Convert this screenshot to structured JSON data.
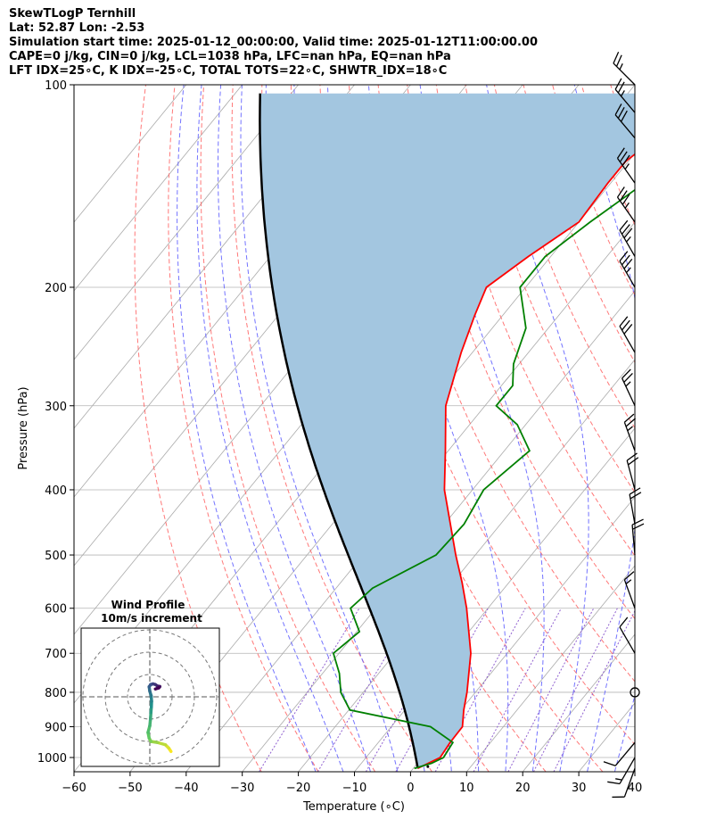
{
  "header": {
    "line1": "SkewTLogP Ternhill",
    "line2": "Lat: 52.87   Lon: -2.53",
    "line3": "Simulation start time: 2025-01-12_00:00:00, Valid time: 2025-01-12T11:00:00.00",
    "line4": "CAPE=0 j/kg, CIN=0 j/kg, LCL=1038 hPa, LFC=nan hPa, EQ=nan hPa",
    "line5": "LFT IDX=25∘C, K IDX=-25∘C, TOTAL TOTS=22∘C, SHWTR_IDX=18∘C"
  },
  "colors": {
    "temperature": "#ff0000",
    "dewpoint": "#008000",
    "parcel": "#000000",
    "cape_fill": "#a3c6e0",
    "dry_adiabat": "#ff6060",
    "moist_adiabat": "#5a5aff",
    "isotherm": "#aaaaaa",
    "isobar": "#b5b5b5",
    "mixing_ratio": "#9060d0"
  },
  "chart_data": {
    "type": "line",
    "subtype": "skew-t log-p",
    "xlabel": "Temperature (∘C)",
    "ylabel": "Pressure (hPa)",
    "xlim": [
      -60,
      40
    ],
    "ylim": [
      1050,
      100
    ],
    "y_scale": "log",
    "x_ticks": [
      -60,
      -50,
      -40,
      -30,
      -20,
      -10,
      0,
      10,
      20,
      30,
      40
    ],
    "y_ticks": [
      1000,
      900,
      800,
      700,
      600,
      500,
      400,
      300,
      200,
      100
    ],
    "grid": true,
    "temperature_profile": {
      "name": "Temperature",
      "points": [
        [
          1038,
          0.8
        ],
        [
          1000,
          3.2
        ],
        [
          950,
          2.8
        ],
        [
          900,
          2.7
        ],
        [
          850,
          0.5
        ],
        [
          800,
          -1.5
        ],
        [
          700,
          -6.5
        ],
        [
          600,
          -13.8
        ],
        [
          550,
          -18.3
        ],
        [
          500,
          -23.5
        ],
        [
          400,
          -35.0
        ],
        [
          350,
          -40.5
        ],
        [
          300,
          -47.0
        ],
        [
          250,
          -52.0
        ],
        [
          220,
          -55.0
        ],
        [
          200,
          -57.0
        ],
        [
          180,
          -54.0
        ],
        [
          160,
          -50.0
        ],
        [
          140,
          -50.5
        ],
        [
          130,
          -50.5
        ],
        [
          120,
          -48.5
        ],
        [
          110,
          -45.0
        ],
        [
          100,
          -43.0
        ]
      ]
    },
    "dewpoint_profile": {
      "name": "Dewpoint",
      "points": [
        [
          1038,
          0.2
        ],
        [
          1020,
          2.5
        ],
        [
          1000,
          3.8
        ],
        [
          950,
          3.3
        ],
        [
          900,
          -3.0
        ],
        [
          850,
          -19.8
        ],
        [
          800,
          -24.0
        ],
        [
          750,
          -27.0
        ],
        [
          700,
          -31.0
        ],
        [
          650,
          -29.5
        ],
        [
          600,
          -34.5
        ],
        [
          560,
          -33.5
        ],
        [
          500,
          -27.0
        ],
        [
          450,
          -26.5
        ],
        [
          400,
          -28.0
        ],
        [
          350,
          -25.5
        ],
        [
          320,
          -31.5
        ],
        [
          300,
          -38.0
        ],
        [
          280,
          -38.0
        ],
        [
          260,
          -41.0
        ],
        [
          230,
          -44.0
        ],
        [
          200,
          -51.0
        ],
        [
          180,
          -51.0
        ],
        [
          160,
          -48.0
        ],
        [
          140,
          -44.0
        ],
        [
          120,
          -43.5
        ],
        [
          110,
          -45.0
        ],
        [
          100,
          -45.0
        ]
      ]
    },
    "parcel_profile": {
      "name": "Parcel",
      "surface_pressure": 1038,
      "surface_temperature": 0.8,
      "lcl_hpa": 1038
    },
    "wind_barbs": [
      {
        "p": 1038,
        "speed_kt": 10,
        "dir_deg": 200
      },
      {
        "p": 1000,
        "speed_kt": 15,
        "dir_deg": 210
      },
      {
        "p": 950,
        "speed_kt": 10,
        "dir_deg": 220
      },
      {
        "p": 800,
        "speed_kt": 0,
        "dir_deg": 0
      },
      {
        "p": 700,
        "speed_kt": 10,
        "dir_deg": 330
      },
      {
        "p": 600,
        "speed_kt": 15,
        "dir_deg": 340
      },
      {
        "p": 500,
        "speed_kt": 20,
        "dir_deg": 355
      },
      {
        "p": 450,
        "speed_kt": 20,
        "dir_deg": 350
      },
      {
        "p": 400,
        "speed_kt": 20,
        "dir_deg": 345
      },
      {
        "p": 350,
        "speed_kt": 25,
        "dir_deg": 340
      },
      {
        "p": 300,
        "speed_kt": 25,
        "dir_deg": 335
      },
      {
        "p": 250,
        "speed_kt": 30,
        "dir_deg": 330
      },
      {
        "p": 200,
        "speed_kt": 35,
        "dir_deg": 330
      },
      {
        "p": 180,
        "speed_kt": 35,
        "dir_deg": 330
      },
      {
        "p": 160,
        "speed_kt": 35,
        "dir_deg": 325
      },
      {
        "p": 140,
        "speed_kt": 35,
        "dir_deg": 325
      },
      {
        "p": 120,
        "speed_kt": 30,
        "dir_deg": 320
      },
      {
        "p": 110,
        "speed_kt": 25,
        "dir_deg": 320
      },
      {
        "p": 100,
        "speed_kt": 25,
        "dir_deg": 315
      }
    ],
    "wind_profile_inset": {
      "title": "Wind Profile",
      "subtitle": "10m/s increment",
      "rings_ms": [
        10,
        20,
        30
      ],
      "hodograph_uv_ms": [
        [
          9.5,
          -24.5
        ],
        [
          8.5,
          -23.0
        ],
        [
          7.0,
          -21.5
        ],
        [
          3.5,
          -20.5
        ],
        [
          0.5,
          -20.0
        ],
        [
          -0.3,
          -18.5
        ],
        [
          -0.8,
          -16.0
        ],
        [
          0.0,
          -13.0
        ],
        [
          0.3,
          -10.0
        ],
        [
          0.5,
          -7.0
        ],
        [
          0.7,
          -4.5
        ],
        [
          0.8,
          -2.0
        ],
        [
          0.6,
          0.5
        ],
        [
          0.0,
          2.5
        ],
        [
          -0.3,
          4.5
        ],
        [
          0.4,
          5.5
        ],
        [
          1.5,
          5.8
        ],
        [
          2.5,
          5.5
        ],
        [
          3.5,
          4.8
        ],
        [
          4.5,
          4.6
        ],
        [
          4.0,
          4.0
        ],
        [
          2.5,
          3.5
        ]
      ]
    }
  }
}
